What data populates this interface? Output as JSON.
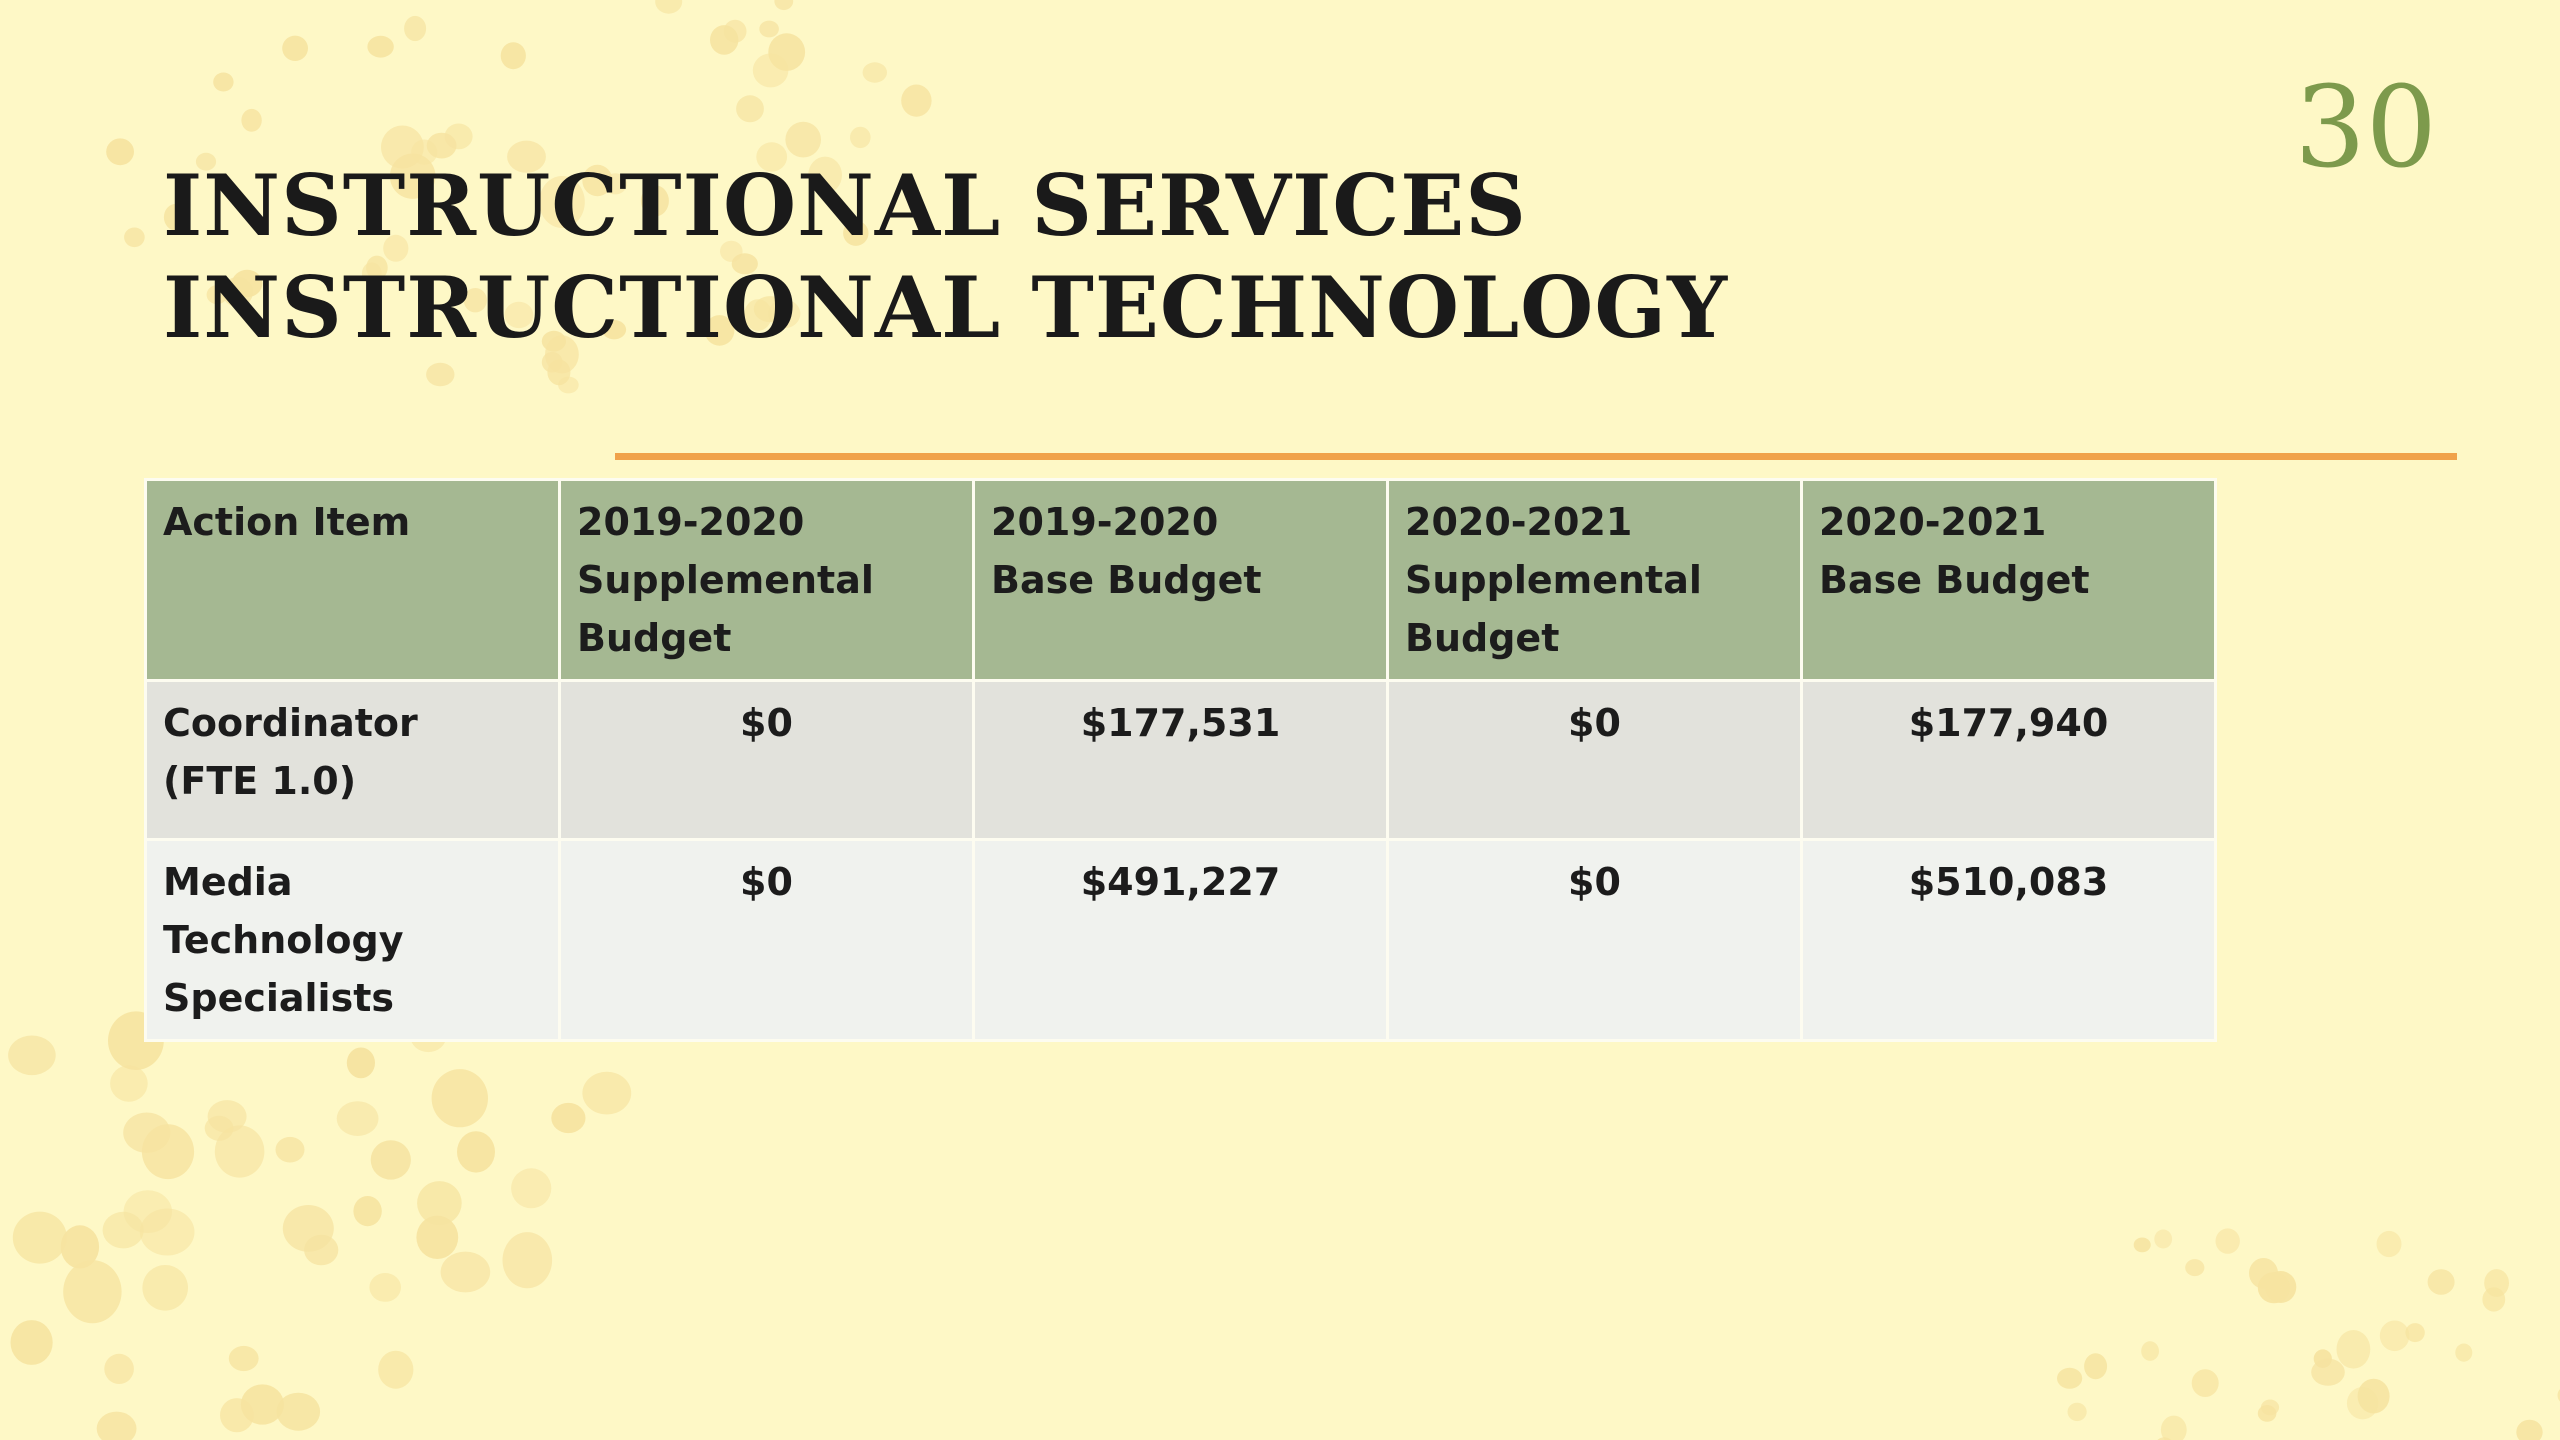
{
  "slide": {
    "page_number": "30",
    "title_lines": [
      "INSTRUCTIONAL SERVICES",
      "INSTRUCTIONAL TECHNOLOGY"
    ],
    "colors": {
      "background": "#fef8c6",
      "dots": "#f6e3a0",
      "accent_rule": "#f0a24a",
      "page_number": "#7d9a4c",
      "header_fill": "#a5b892",
      "row_fill_1": "#e2e2dc",
      "row_fill_2": "#f0f2ee"
    }
  },
  "table": {
    "headers": [
      [
        "Action Item"
      ],
      [
        "2019-2020",
        "Supplemental",
        "Budget"
      ],
      [
        "2019-2020",
        "Base Budget"
      ],
      [
        "2020-2021",
        "Supplemental",
        "Budget"
      ],
      [
        "2020-2021",
        "Base Budget"
      ]
    ],
    "rows": [
      {
        "item_lines": [
          "Coordinator",
          "(FTE 1.0)"
        ],
        "values": [
          "$0",
          "$177,531",
          "$0",
          "$177,940"
        ]
      },
      {
        "item_lines": [
          "Media Technology",
          "Specialists"
        ],
        "values": [
          "$0",
          "$491,227",
          "$0",
          "$510,083"
        ]
      }
    ]
  }
}
